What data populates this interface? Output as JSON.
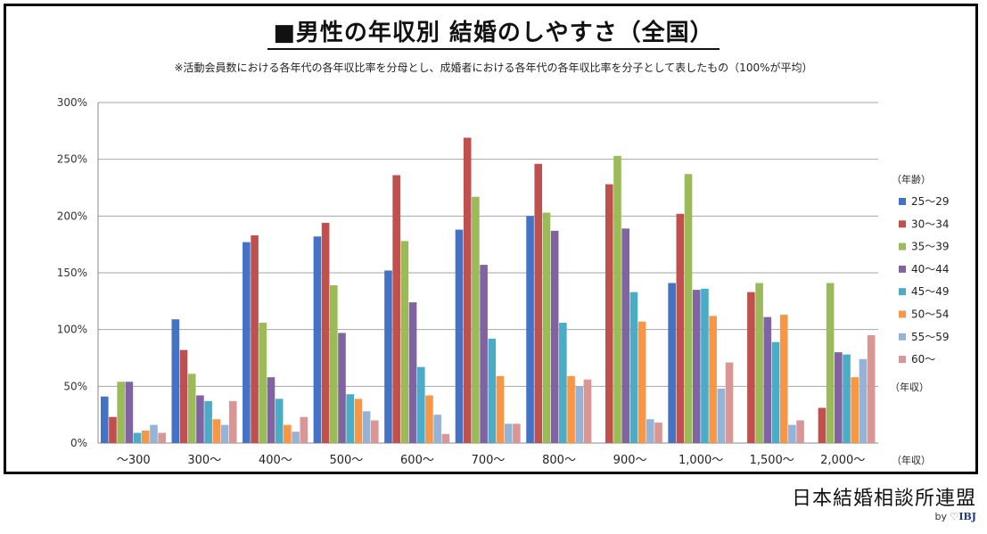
{
  "header": {
    "title": "■男性の年収別 結婚のしやすさ（全国）",
    "subtitle": "※活動会員数における各年代の各年収比率を分母とし、成婚者における各年代の各年収比率を分子として表したもの（100%が平均）"
  },
  "footer": {
    "brand": "日本結婚相談所連盟",
    "by": "by",
    "heart": "♡",
    "logo": "IBJ"
  },
  "chart_data": {
    "type": "bar",
    "title": "男性の年収別 結婚のしやすさ（全国）",
    "xlabel": "（年収）",
    "ylabel_note": "（年収）",
    "legend_title": "（年齢）",
    "ylim": [
      0,
      300
    ],
    "yticks": [
      0,
      50,
      100,
      150,
      200,
      250,
      300
    ],
    "ytick_labels": [
      "0%",
      "50%",
      "100%",
      "150%",
      "200%",
      "250%",
      "300%"
    ],
    "categories": [
      "～300",
      "300～",
      "400～",
      "500～",
      "600～",
      "700～",
      "800～",
      "900～",
      "1,000～",
      "1,500～",
      "2,000～"
    ],
    "series": [
      {
        "name": "25～29",
        "color": "#4472C4",
        "values": [
          41,
          109,
          177,
          182,
          152,
          188,
          200,
          0,
          141,
          0,
          0
        ]
      },
      {
        "name": "30～34",
        "color": "#C0504D",
        "values": [
          23,
          82,
          183,
          194,
          236,
          269,
          246,
          228,
          202,
          133,
          31
        ]
      },
      {
        "name": "35～39",
        "color": "#9BBB59",
        "values": [
          54,
          61,
          106,
          139,
          178,
          217,
          203,
          253,
          237,
          141,
          141
        ]
      },
      {
        "name": "40～44",
        "color": "#8064A2",
        "values": [
          54,
          42,
          58,
          97,
          124,
          157,
          187,
          189,
          135,
          111,
          80
        ]
      },
      {
        "name": "45～49",
        "color": "#4BACC6",
        "values": [
          9,
          37,
          39,
          43,
          67,
          92,
          106,
          133,
          136,
          89,
          78
        ]
      },
      {
        "name": "50～54",
        "color": "#F79646",
        "values": [
          11,
          21,
          16,
          39,
          42,
          59,
          59,
          107,
          112,
          113,
          58
        ]
      },
      {
        "name": "55～59",
        "color": "#95B3D7",
        "values": [
          16,
          16,
          10,
          28,
          25,
          17,
          50,
          21,
          48,
          16,
          74
        ]
      },
      {
        "name": "60～",
        "color": "#D99694",
        "values": [
          9,
          37,
          23,
          20,
          8,
          17,
          56,
          18,
          71,
          20,
          95
        ]
      }
    ]
  }
}
